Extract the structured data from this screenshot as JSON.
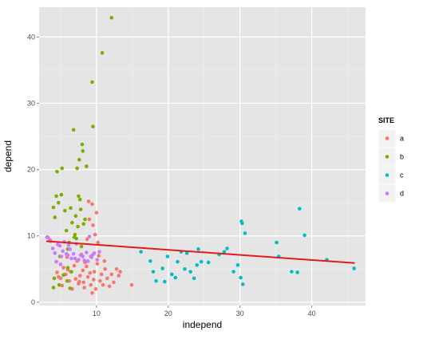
{
  "chart_data": {
    "type": "scatter",
    "xlabel": "independ",
    "ylabel": "depend",
    "xlim": [
      2,
      47.5
    ],
    "ylim": [
      -0.5,
      44.5
    ],
    "x_ticks": [
      10,
      20,
      30,
      40
    ],
    "y_ticks": [
      0,
      10,
      20,
      30,
      40
    ],
    "grid": true,
    "legend": {
      "title": "SITE",
      "position": "right"
    },
    "series": [
      {
        "name": "a",
        "color": "#F8766D",
        "points": [
          [
            3.2,
            9.8
          ],
          [
            3.6,
            9.2
          ],
          [
            4.5,
            4.5
          ],
          [
            4.7,
            3.8
          ],
          [
            5.0,
            3.6
          ],
          [
            5.2,
            2.5
          ],
          [
            5.4,
            5.2
          ],
          [
            5.7,
            4.2
          ],
          [
            5.9,
            6.8
          ],
          [
            6.2,
            3.2
          ],
          [
            6.4,
            4.6
          ],
          [
            6.6,
            2.0
          ],
          [
            6.9,
            5.5
          ],
          [
            7.1,
            3.5
          ],
          [
            7.3,
            6.2
          ],
          [
            7.5,
            2.8
          ],
          [
            7.7,
            4.0
          ],
          [
            7.9,
            7.2
          ],
          [
            8.1,
            4.8
          ],
          [
            8.2,
            3.0
          ],
          [
            8.3,
            2.2
          ],
          [
            8.4,
            6.0
          ],
          [
            8.6,
            5.4
          ],
          [
            8.7,
            9.5
          ],
          [
            8.8,
            3.8
          ],
          [
            8.9,
            15.2
          ],
          [
            9.0,
            12.5
          ],
          [
            9.1,
            4.4
          ],
          [
            9.2,
            2.6
          ],
          [
            9.3,
            6.8
          ],
          [
            9.4,
            14.8
          ],
          [
            9.5,
            11.6
          ],
          [
            9.6,
            3.4
          ],
          [
            9.7,
            4.6
          ],
          [
            9.8,
            10.2
          ],
          [
            9.9,
            2.0
          ],
          [
            10.0,
            13.5
          ],
          [
            10.1,
            5.8
          ],
          [
            10.2,
            9.0
          ],
          [
            10.3,
            7.0
          ],
          [
            10.5,
            3.2
          ],
          [
            10.7,
            4.2
          ],
          [
            10.9,
            2.6
          ],
          [
            11.1,
            6.2
          ],
          [
            11.2,
            5.0
          ],
          [
            11.5,
            3.6
          ],
          [
            11.8,
            2.4
          ],
          [
            12.1,
            4.2
          ],
          [
            12.4,
            3.0
          ],
          [
            12.8,
            5.0
          ],
          [
            13.1,
            4.0
          ],
          [
            13.3,
            4.6
          ],
          [
            14.9,
            2.6
          ],
          [
            9.4,
            1.4
          ],
          [
            6.0,
            4.9
          ],
          [
            7.6,
            3.1
          ]
        ]
      },
      {
        "name": "b",
        "color": "#7CAE00",
        "points": [
          [
            4.0,
            2.2
          ],
          [
            4.0,
            14.3
          ],
          [
            4.1,
            3.6
          ],
          [
            4.2,
            12.8
          ],
          [
            4.4,
            16.0
          ],
          [
            4.5,
            19.7
          ],
          [
            4.7,
            15.0
          ],
          [
            4.8,
            2.6
          ],
          [
            4.9,
            6.9
          ],
          [
            5.1,
            16.2
          ],
          [
            5.2,
            20.2
          ],
          [
            5.4,
            4.1
          ],
          [
            5.6,
            13.8
          ],
          [
            5.8,
            10.8
          ],
          [
            5.9,
            3.2
          ],
          [
            6.0,
            5.2
          ],
          [
            6.2,
            9.0
          ],
          [
            6.4,
            14.2
          ],
          [
            6.5,
            4.6
          ],
          [
            6.6,
            12.0
          ],
          [
            6.8,
            26.0
          ],
          [
            6.9,
            9.8
          ],
          [
            7.0,
            10.2
          ],
          [
            7.1,
            13.0
          ],
          [
            7.3,
            20.2
          ],
          [
            7.4,
            11.4
          ],
          [
            7.5,
            16.0
          ],
          [
            7.6,
            21.5
          ],
          [
            7.7,
            15.5
          ],
          [
            7.8,
            14.0
          ],
          [
            7.9,
            8.4
          ],
          [
            8.0,
            23.8
          ],
          [
            8.1,
            22.8
          ],
          [
            8.2,
            11.8
          ],
          [
            8.4,
            12.5
          ],
          [
            8.6,
            20.5
          ],
          [
            9.4,
            33.2
          ],
          [
            9.5,
            26.5
          ],
          [
            10.8,
            37.6
          ],
          [
            12.1,
            42.9
          ],
          [
            6.3,
            2.1
          ],
          [
            7.2,
            9.6
          ],
          [
            6.0,
            8.0
          ]
        ]
      },
      {
        "name": "c",
        "color": "#00BFC4",
        "points": [
          [
            16.2,
            7.6
          ],
          [
            17.5,
            6.2
          ],
          [
            17.9,
            4.6
          ],
          [
            18.3,
            3.2
          ],
          [
            19.2,
            5.1
          ],
          [
            19.5,
            3.1
          ],
          [
            19.9,
            6.9
          ],
          [
            20.5,
            4.2
          ],
          [
            21.0,
            3.7
          ],
          [
            21.3,
            6.1
          ],
          [
            21.8,
            7.6
          ],
          [
            22.3,
            5.0
          ],
          [
            22.6,
            7.4
          ],
          [
            23.1,
            4.6
          ],
          [
            23.6,
            3.6
          ],
          [
            24.0,
            5.6
          ],
          [
            24.2,
            8.0
          ],
          [
            24.6,
            6.1
          ],
          [
            25.6,
            6.0
          ],
          [
            27.1,
            7.2
          ],
          [
            27.8,
            7.6
          ],
          [
            28.2,
            8.1
          ],
          [
            29.1,
            4.6
          ],
          [
            29.7,
            5.6
          ],
          [
            30.1,
            3.7
          ],
          [
            30.2,
            12.2
          ],
          [
            30.3,
            11.9
          ],
          [
            30.4,
            2.7
          ],
          [
            30.7,
            10.4
          ],
          [
            35.1,
            9.0
          ],
          [
            35.4,
            6.9
          ],
          [
            37.2,
            4.6
          ],
          [
            38.0,
            4.5
          ],
          [
            38.3,
            14.1
          ],
          [
            39.0,
            10.1
          ],
          [
            42.1,
            6.4
          ],
          [
            45.9,
            5.1
          ]
        ]
      },
      {
        "name": "d",
        "color": "#C77CFF",
        "points": [
          [
            3.1,
            9.8
          ],
          [
            3.5,
            9.4
          ],
          [
            3.9,
            8.1
          ],
          [
            4.2,
            7.4
          ],
          [
            4.6,
            8.7
          ],
          [
            4.9,
            8.5
          ],
          [
            5.1,
            6.9
          ],
          [
            5.3,
            7.7
          ],
          [
            5.5,
            9.1
          ],
          [
            5.8,
            7.3
          ],
          [
            6.0,
            7.1
          ],
          [
            6.3,
            8.0
          ],
          [
            6.5,
            6.6
          ],
          [
            6.8,
            7.3
          ],
          [
            7.0,
            6.6
          ],
          [
            7.2,
            8.8
          ],
          [
            7.5,
            6.4
          ],
          [
            7.8,
            7.1
          ],
          [
            8.1,
            6.9
          ],
          [
            8.3,
            6.3
          ],
          [
            8.6,
            7.5
          ],
          [
            8.8,
            6.2
          ],
          [
            9.0,
            9.9
          ],
          [
            9.2,
            6.9
          ],
          [
            9.5,
            7.2
          ],
          [
            9.7,
            7.4
          ],
          [
            10.1,
            6.4
          ],
          [
            10.4,
            7.6
          ],
          [
            4.4,
            6.1
          ],
          [
            5.0,
            5.7
          ],
          [
            6.1,
            8.6
          ]
        ]
      }
    ],
    "fit_line": {
      "color": "#E41A1C",
      "x": [
        3,
        46
      ],
      "y": [
        9.2,
        5.9
      ]
    }
  }
}
